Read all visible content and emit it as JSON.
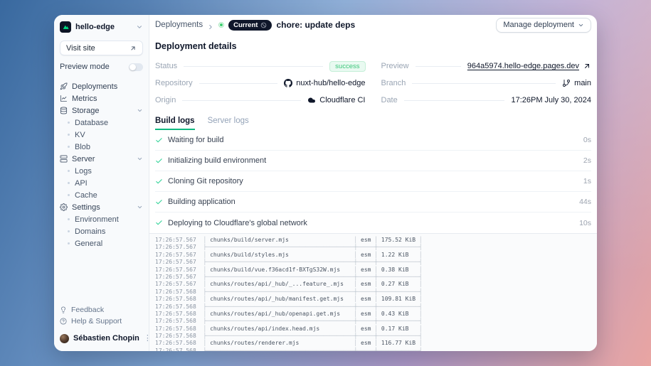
{
  "project": {
    "name": "hello-edge"
  },
  "sidebar": {
    "visit_site": "Visit site",
    "preview_mode": "Preview mode",
    "nav": [
      {
        "label": "Deployments",
        "icon": "rocket",
        "active": true
      },
      {
        "label": "Metrics",
        "icon": "chart"
      },
      {
        "label": "Storage",
        "icon": "database",
        "expandable": true,
        "children": [
          "Database",
          "KV",
          "Blob"
        ]
      },
      {
        "label": "Server",
        "icon": "server",
        "expandable": true,
        "children": [
          "Logs",
          "API",
          "Cache"
        ]
      },
      {
        "label": "Settings",
        "icon": "gear",
        "expandable": true,
        "children": [
          "Environment",
          "Domains",
          "General"
        ]
      }
    ],
    "footer": [
      {
        "label": "Feedback",
        "icon": "lightbulb"
      },
      {
        "label": "Help & Support",
        "icon": "help"
      }
    ],
    "user": {
      "name": "Sébastien Chopin"
    }
  },
  "header": {
    "breadcrumb": "Deployments",
    "badge": "Current",
    "title": "chore: update deps",
    "manage_button": "Manage deployment"
  },
  "details": {
    "heading": "Deployment details",
    "fields": [
      {
        "label": "Status",
        "value": "success",
        "kind": "badge"
      },
      {
        "label": "Preview",
        "value": "964a5974.hello-edge.pages.dev",
        "kind": "link"
      },
      {
        "label": "Repository",
        "value": "nuxt-hub/hello-edge",
        "kind": "text",
        "icon": "github"
      },
      {
        "label": "Branch",
        "value": "main",
        "kind": "text",
        "icon": "gitbranch"
      },
      {
        "label": "Origin",
        "value": "Cloudflare CI",
        "kind": "text",
        "icon": "cloud"
      },
      {
        "label": "Date",
        "value": "17:26PM July 30, 2024",
        "kind": "text"
      }
    ]
  },
  "tabs": [
    {
      "label": "Build logs",
      "active": true
    },
    {
      "label": "Server logs",
      "active": false
    }
  ],
  "build_steps": [
    {
      "label": "Waiting for build",
      "duration": "0s"
    },
    {
      "label": "Initializing build environment",
      "duration": "2s"
    },
    {
      "label": "Cloning Git repository",
      "duration": "1s"
    },
    {
      "label": "Building application",
      "duration": "44s"
    },
    {
      "label": "Deploying to Cloudflare's global network",
      "duration": "10s"
    }
  ],
  "logs": {
    "lines": [
      {
        "time": "17:26:57.567",
        "type": "row",
        "path": "chunks/build/server.mjs",
        "format": "esm",
        "size": "175.52 KiB"
      },
      {
        "time": "17:26:57.567",
        "type": "sep"
      },
      {
        "time": "17:26:57.567",
        "type": "row",
        "path": "chunks/build/styles.mjs",
        "format": "esm",
        "size": "1.22 KiB"
      },
      {
        "time": "17:26:57.567",
        "type": "sep"
      },
      {
        "time": "17:26:57.567",
        "type": "row",
        "path": "chunks/build/vue.f36acd1f-BXTgS32W.mjs",
        "format": "esm",
        "size": "0.38 KiB"
      },
      {
        "time": "17:26:57.567",
        "type": "sep"
      },
      {
        "time": "17:26:57.567",
        "type": "row",
        "path": "chunks/routes/api/_hub/_...feature_.mjs",
        "format": "esm",
        "size": "0.27 KiB"
      },
      {
        "time": "17:26:57.568",
        "type": "sep"
      },
      {
        "time": "17:26:57.568",
        "type": "row",
        "path": "chunks/routes/api/_hub/manifest.get.mjs",
        "format": "esm",
        "size": "109.81 KiB"
      },
      {
        "time": "17:26:57.568",
        "type": "sep"
      },
      {
        "time": "17:26:57.568",
        "type": "row",
        "path": "chunks/routes/api/_hub/openapi.get.mjs",
        "format": "esm",
        "size": "0.43 KiB"
      },
      {
        "time": "17:26:57.568",
        "type": "sep"
      },
      {
        "time": "17:26:57.568",
        "type": "row",
        "path": "chunks/routes/api/index.head.mjs",
        "format": "esm",
        "size": "0.17 KiB"
      },
      {
        "time": "17:26:57.568",
        "type": "sep"
      },
      {
        "time": "17:26:57.568",
        "type": "row",
        "path": "chunks/routes/renderer.mjs",
        "format": "esm",
        "size": "116.77 KiB"
      },
      {
        "time": "17:26:57.568",
        "type": "sep"
      },
      {
        "time": "17:26:57.568",
        "type": "row",
        "path": "",
        "format": "",
        "size": ""
      }
    ]
  },
  "colors": {
    "accent_green": "#00dc82",
    "tab_underline": "#10b981",
    "success_text": "#3bc579",
    "success_bg": "#e9faf1",
    "badge_dark_bg": "#0f172a"
  }
}
